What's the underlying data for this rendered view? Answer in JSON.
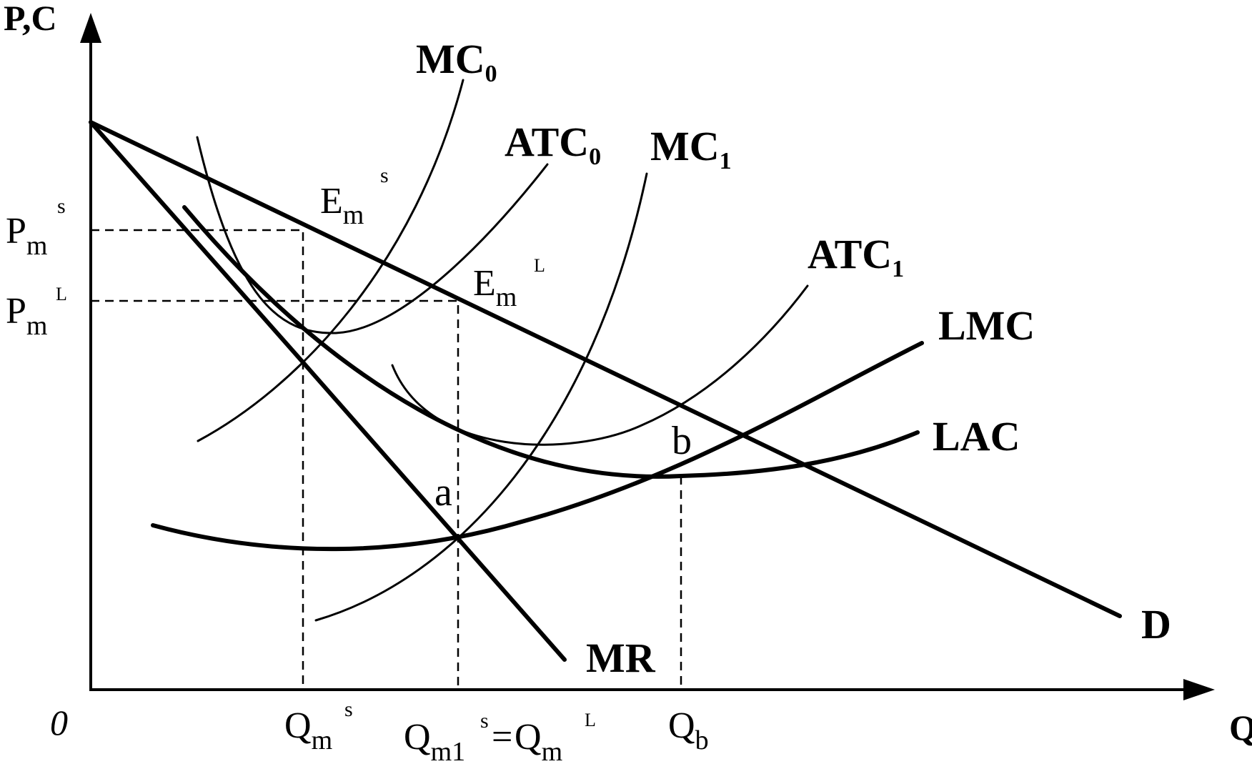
{
  "axes": {
    "y_label": "P,C",
    "x_label": "Q",
    "origin": "0"
  },
  "curves": {
    "mc0": {
      "name": "MC",
      "sub": "0"
    },
    "atc0": {
      "name": "ATC",
      "sub": "0"
    },
    "mc1": {
      "name": "MC",
      "sub": "1"
    },
    "atc1": {
      "name": "ATC",
      "sub": "1"
    },
    "lmc": {
      "name": "LMC"
    },
    "lac": {
      "name": "LAC"
    },
    "demand": {
      "name": "D"
    },
    "mr": {
      "name": "MR"
    }
  },
  "points": {
    "em_s": {
      "main": "E",
      "sub": "m",
      "sup": "s"
    },
    "em_l": {
      "main": "E",
      "sub": "m",
      "sup": "L"
    },
    "a": "a",
    "b": "b"
  },
  "y_ticks": {
    "pm_s": {
      "main": "P",
      "sub": "m",
      "sup": "s"
    },
    "pm_l": {
      "main": "P",
      "sub": "m",
      "sup": "L"
    }
  },
  "x_ticks": {
    "qm_s": {
      "main": "Q",
      "sub": "m",
      "sup": "s"
    },
    "qm1": {
      "main": "Q",
      "sub": "m1",
      "sup": "s",
      "eq": "=",
      "main2": "Q",
      "sub2": "m",
      "sup2": "L"
    },
    "qb": {
      "main": "Q",
      "sub": "b"
    }
  }
}
